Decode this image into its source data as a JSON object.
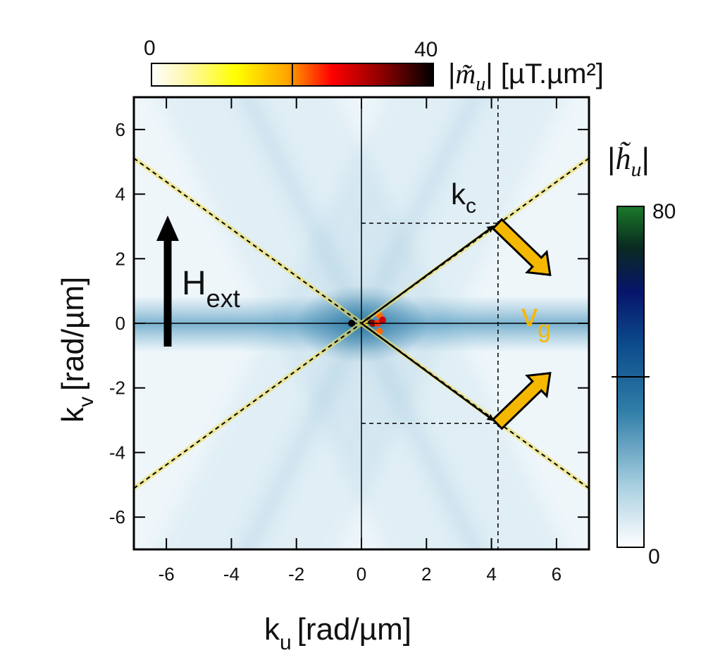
{
  "chart_data": {
    "type": "heatmap",
    "x": {
      "label": "k",
      "label_sub": "u",
      "unit": "[rad/µm]",
      "range": [
        -7,
        7
      ],
      "ticks": [
        -6,
        -4,
        -2,
        0,
        2,
        4,
        6
      ],
      "tick_labels": [
        "-6",
        "-4",
        "-2",
        "0",
        "2",
        "4",
        "6"
      ]
    },
    "y": {
      "label": "k",
      "label_sub": "v",
      "unit": "[rad/µm]",
      "range": [
        -7,
        7
      ],
      "ticks": [
        -6,
        -4,
        -2,
        0,
        2,
        4,
        6
      ],
      "tick_labels": [
        "-6",
        "-4",
        "-2",
        "0",
        "2",
        "4",
        "6"
      ]
    },
    "grid": false,
    "colorbar_m": {
      "label": "|m̃u| [µT.µm²]",
      "min_label": "0",
      "max_label": "40",
      "min": 0,
      "max": 40,
      "colors": [
        "#ffffff",
        "#fff7b0",
        "#ffff00",
        "#ffa500",
        "#ff0000",
        "#8b0000",
        "#000000"
      ]
    },
    "colorbar_h": {
      "label": "|h̃u|",
      "min_label": "0",
      "max_label": "80",
      "min": 0,
      "max": 80,
      "colors": [
        "#ffffff",
        "#a9cfe0",
        "#2f7ea8",
        "#0b4a8a",
        "#07146b",
        "#0a2a20",
        "#1a7a2a"
      ]
    },
    "annotations": {
      "field_label": "H",
      "field_sub": "ext",
      "k_label": "k",
      "k_sub": "c",
      "v_label": "v",
      "v_sub": "g",
      "v_color": "#f5b800"
    },
    "caustic_lines": [
      {
        "slope": 0.73
      },
      {
        "slope": -0.73
      }
    ],
    "critical_k": {
      "ku": 4.2,
      "kv": 3.1
    },
    "beam_slope": 2.0
  }
}
